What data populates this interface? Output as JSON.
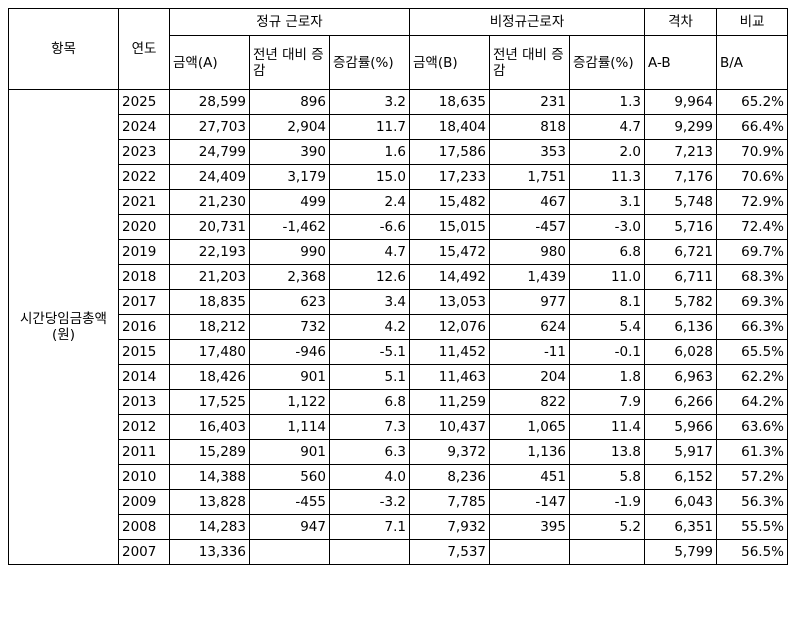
{
  "header": {
    "item": "항목",
    "year": "연도",
    "regular": "정규 근로자",
    "nonregular": "비정규근로자",
    "gap": "격차",
    "compare": "비교",
    "reg_amount": "금액(A)",
    "reg_change": "전년 대비 증감",
    "reg_rate": "증감률(%)",
    "non_amount": "금액(B)",
    "non_change": "전년 대비 증감",
    "non_rate": "증감률(%)",
    "gap_formula": "A-B",
    "ratio_formula": "B/A"
  },
  "item_label": "시간당임금총액 (원)",
  "rows": [
    {
      "year": "2025",
      "a": "28,599",
      "a_chg": "896",
      "a_rate": "3.2",
      "b": "18,635",
      "b_chg": "231",
      "b_rate": "1.3",
      "gap": "9,964",
      "ratio": "65.2%"
    },
    {
      "year": "2024",
      "a": "27,703",
      "a_chg": "2,904",
      "a_rate": "11.7",
      "b": "18,404",
      "b_chg": "818",
      "b_rate": "4.7",
      "gap": "9,299",
      "ratio": "66.4%"
    },
    {
      "year": "2023",
      "a": "24,799",
      "a_chg": "390",
      "a_rate": "1.6",
      "b": "17,586",
      "b_chg": "353",
      "b_rate": "2.0",
      "gap": "7,213",
      "ratio": "70.9%"
    },
    {
      "year": "2022",
      "a": "24,409",
      "a_chg": "3,179",
      "a_rate": "15.0",
      "b": "17,233",
      "b_chg": "1,751",
      "b_rate": "11.3",
      "gap": "7,176",
      "ratio": "70.6%"
    },
    {
      "year": "2021",
      "a": "21,230",
      "a_chg": "499",
      "a_rate": "2.4",
      "b": "15,482",
      "b_chg": "467",
      "b_rate": "3.1",
      "gap": "5,748",
      "ratio": "72.9%"
    },
    {
      "year": "2020",
      "a": "20,731",
      "a_chg": "-1,462",
      "a_rate": "-6.6",
      "b": "15,015",
      "b_chg": "-457",
      "b_rate": "-3.0",
      "gap": "5,716",
      "ratio": "72.4%"
    },
    {
      "year": "2019",
      "a": "22,193",
      "a_chg": "990",
      "a_rate": "4.7",
      "b": "15,472",
      "b_chg": "980",
      "b_rate": "6.8",
      "gap": "6,721",
      "ratio": "69.7%"
    },
    {
      "year": "2018",
      "a": "21,203",
      "a_chg": "2,368",
      "a_rate": "12.6",
      "b": "14,492",
      "b_chg": "1,439",
      "b_rate": "11.0",
      "gap": "6,711",
      "ratio": "68.3%"
    },
    {
      "year": "2017",
      "a": "18,835",
      "a_chg": "623",
      "a_rate": "3.4",
      "b": "13,053",
      "b_chg": "977",
      "b_rate": "8.1",
      "gap": "5,782",
      "ratio": "69.3%"
    },
    {
      "year": "2016",
      "a": "18,212",
      "a_chg": "732",
      "a_rate": "4.2",
      "b": "12,076",
      "b_chg": "624",
      "b_rate": "5.4",
      "gap": "6,136",
      "ratio": "66.3%"
    },
    {
      "year": "2015",
      "a": "17,480",
      "a_chg": "-946",
      "a_rate": "-5.1",
      "b": "11,452",
      "b_chg": "-11",
      "b_rate": "-0.1",
      "gap": "6,028",
      "ratio": "65.5%"
    },
    {
      "year": "2014",
      "a": "18,426",
      "a_chg": "901",
      "a_rate": "5.1",
      "b": "11,463",
      "b_chg": "204",
      "b_rate": "1.8",
      "gap": "6,963",
      "ratio": "62.2%"
    },
    {
      "year": "2013",
      "a": "17,525",
      "a_chg": "1,122",
      "a_rate": "6.8",
      "b": "11,259",
      "b_chg": "822",
      "b_rate": "7.9",
      "gap": "6,266",
      "ratio": "64.2%"
    },
    {
      "year": "2012",
      "a": "16,403",
      "a_chg": "1,114",
      "a_rate": "7.3",
      "b": "10,437",
      "b_chg": "1,065",
      "b_rate": "11.4",
      "gap": "5,966",
      "ratio": "63.6%"
    },
    {
      "year": "2011",
      "a": "15,289",
      "a_chg": "901",
      "a_rate": "6.3",
      "b": "9,372",
      "b_chg": "1,136",
      "b_rate": "13.8",
      "gap": "5,917",
      "ratio": "61.3%"
    },
    {
      "year": "2010",
      "a": "14,388",
      "a_chg": "560",
      "a_rate": "4.0",
      "b": "8,236",
      "b_chg": "451",
      "b_rate": "5.8",
      "gap": "6,152",
      "ratio": "57.2%"
    },
    {
      "year": "2009",
      "a": "13,828",
      "a_chg": "-455",
      "a_rate": "-3.2",
      "b": "7,785",
      "b_chg": "-147",
      "b_rate": "-1.9",
      "gap": "6,043",
      "ratio": "56.3%"
    },
    {
      "year": "2008",
      "a": "14,283",
      "a_chg": "947",
      "a_rate": "7.1",
      "b": "7,932",
      "b_chg": "395",
      "b_rate": "5.2",
      "gap": "6,351",
      "ratio": "55.5%"
    },
    {
      "year": "2007",
      "a": "13,336",
      "a_chg": "",
      "a_rate": "",
      "b": "7,537",
      "b_chg": "",
      "b_rate": "",
      "gap": "5,799",
      "ratio": "56.5%"
    }
  ]
}
